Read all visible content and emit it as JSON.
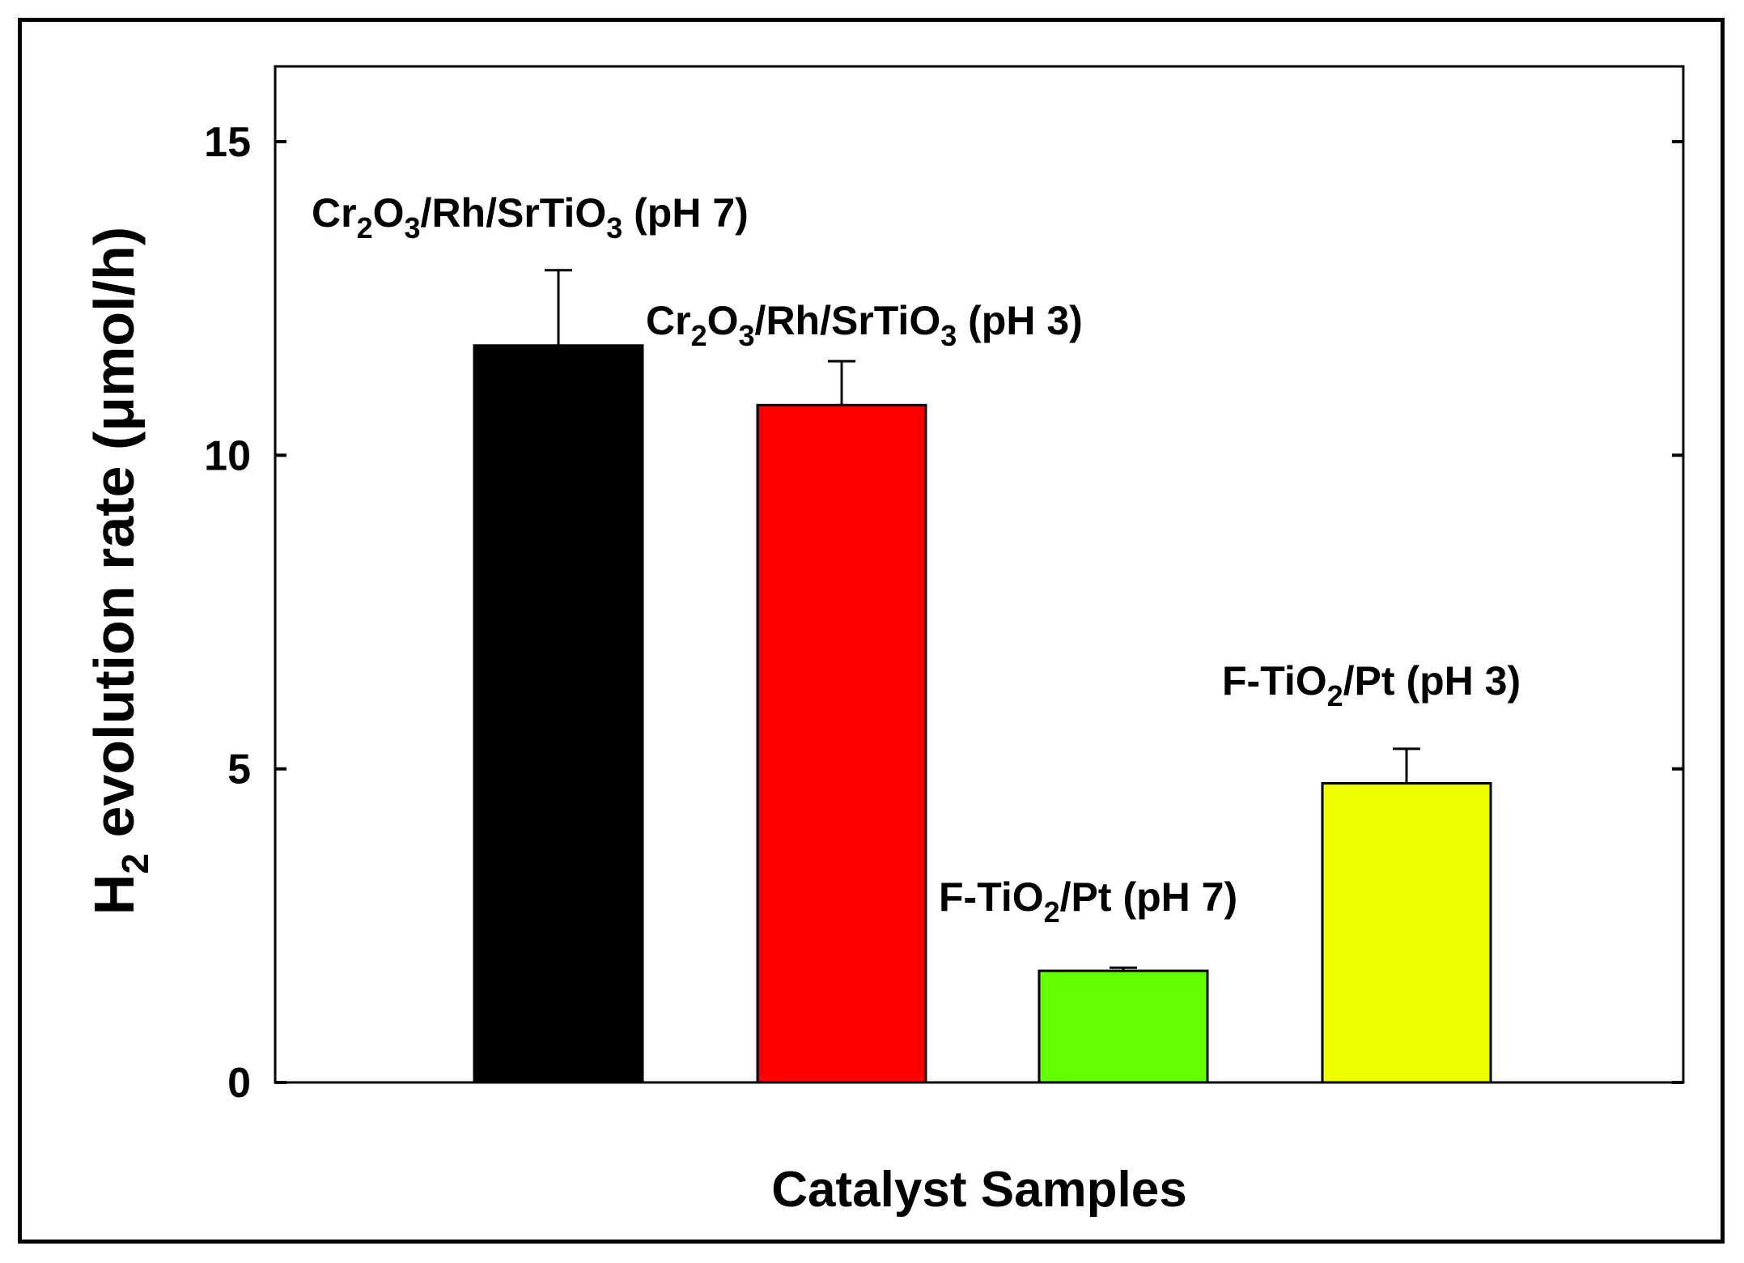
{
  "chart_data": {
    "type": "bar",
    "xlabel": "Catalyst Samples",
    "ylabel": {
      "prefix": "H",
      "sub": "2",
      "rest": " evolution rate (μmol/h)"
    },
    "ylim": [
      0,
      16.2
    ],
    "yticks": [
      0,
      5,
      10,
      15
    ],
    "grid": false,
    "categories": [
      "Cr2O3/Rh/SrTiO3 (pH 7)",
      "Cr2O3/Rh/SrTiO3 (pH 3)",
      "F-TiO2/Pt (pH 7)",
      "F-TiO2/Pt (pH 3)"
    ],
    "category_parts": [
      [
        {
          "t": "Cr"
        },
        {
          "t": "2",
          "sub": true
        },
        {
          "t": "O"
        },
        {
          "t": "3",
          "sub": true
        },
        {
          "t": "/Rh/SrTiO"
        },
        {
          "t": "3",
          "sub": true
        },
        {
          "t": " (pH 7)"
        }
      ],
      [
        {
          "t": "Cr"
        },
        {
          "t": "2",
          "sub": true
        },
        {
          "t": "O"
        },
        {
          "t": "3",
          "sub": true
        },
        {
          "t": "/Rh/SrTiO"
        },
        {
          "t": "3",
          "sub": true
        },
        {
          "t": " (pH 3)"
        }
      ],
      [
        {
          "t": "F-TiO"
        },
        {
          "t": "2",
          "sub": true
        },
        {
          "t": "/Pt (pH 7)"
        }
      ],
      [
        {
          "t": "F-TiO"
        },
        {
          "t": "2",
          "sub": true
        },
        {
          "t": "/Pt (pH 3)"
        }
      ]
    ],
    "values": [
      11.75,
      10.8,
      1.78,
      4.77
    ],
    "errors": [
      1.2,
      0.7,
      0.05,
      0.55
    ],
    "colors": [
      "#000000",
      "#ff0000",
      "#66ff00",
      "#eeff00"
    ]
  }
}
